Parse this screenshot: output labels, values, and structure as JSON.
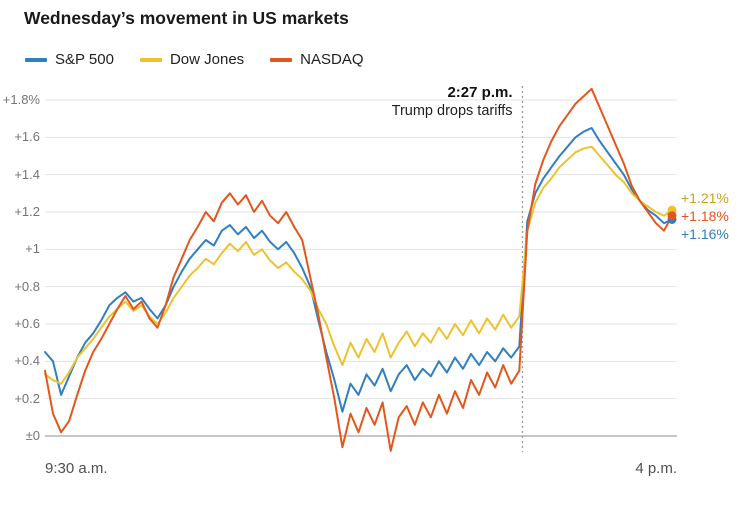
{
  "header": {
    "title": "Wednesday’s movement in US markets"
  },
  "chart_data": {
    "type": "line",
    "title": "Wednesday’s movement in US markets",
    "legend_position": "top-left",
    "grid": true,
    "x_axis": {
      "start_label": "9:30 a.m.",
      "end_label": "4 p.m.",
      "start_minute": 0,
      "end_minute": 390,
      "sample_interval_minutes": 5
    },
    "y_axis": {
      "unit": "percent change",
      "min": -0.1,
      "max": 1.9,
      "tick_values": [
        1.8,
        1.6,
        1.4,
        1.2,
        1.0,
        0.8,
        0.6,
        0.4,
        0.2,
        0
      ],
      "tick_labels": [
        "+1.8%",
        "+1.6",
        "+1.4",
        "+1.2",
        "+1",
        "+0.8",
        "+0.6",
        "+0.4",
        "+0.2",
        "±0"
      ]
    },
    "annotation": {
      "minute": 297,
      "time_label": "2:27 p.m.",
      "text": "Trump drops tariffs"
    },
    "series": [
      {
        "name": "S&P 500",
        "color": "#2f7fc1",
        "final_change_pct": 1.16,
        "values": [
          0.45,
          0.4,
          0.22,
          0.32,
          0.42,
          0.5,
          0.55,
          0.62,
          0.7,
          0.74,
          0.77,
          0.72,
          0.74,
          0.68,
          0.63,
          0.7,
          0.8,
          0.88,
          0.95,
          1.0,
          1.05,
          1.02,
          1.1,
          1.13,
          1.08,
          1.12,
          1.06,
          1.1,
          1.04,
          1.0,
          1.04,
          0.98,
          0.9,
          0.8,
          0.62,
          0.45,
          0.3,
          0.13,
          0.28,
          0.22,
          0.33,
          0.27,
          0.36,
          0.24,
          0.33,
          0.38,
          0.3,
          0.36,
          0.32,
          0.4,
          0.34,
          0.42,
          0.36,
          0.44,
          0.38,
          0.45,
          0.4,
          0.47,
          0.42,
          0.48,
          1.15,
          1.3,
          1.38,
          1.44,
          1.5,
          1.55,
          1.6,
          1.63,
          1.65,
          1.58,
          1.52,
          1.46,
          1.4,
          1.32,
          1.26,
          1.21,
          1.18,
          1.14,
          1.16
        ]
      },
      {
        "name": "Dow Jones",
        "color": "#ecc32f",
        "final_change_pct": 1.21,
        "values": [
          0.33,
          0.3,
          0.28,
          0.34,
          0.42,
          0.47,
          0.52,
          0.58,
          0.64,
          0.68,
          0.72,
          0.67,
          0.7,
          0.64,
          0.6,
          0.66,
          0.74,
          0.8,
          0.86,
          0.9,
          0.95,
          0.92,
          0.98,
          1.03,
          0.99,
          1.04,
          0.97,
          1.0,
          0.94,
          0.9,
          0.93,
          0.88,
          0.84,
          0.78,
          0.68,
          0.6,
          0.48,
          0.38,
          0.5,
          0.42,
          0.52,
          0.45,
          0.55,
          0.42,
          0.5,
          0.56,
          0.48,
          0.55,
          0.5,
          0.58,
          0.52,
          0.6,
          0.54,
          0.62,
          0.55,
          0.63,
          0.57,
          0.65,
          0.58,
          0.64,
          1.1,
          1.25,
          1.33,
          1.38,
          1.44,
          1.48,
          1.52,
          1.54,
          1.55,
          1.5,
          1.45,
          1.4,
          1.36,
          1.3,
          1.26,
          1.23,
          1.2,
          1.18,
          1.21
        ]
      },
      {
        "name": "NASDAQ",
        "color": "#e4571c",
        "final_change_pct": 1.18,
        "values": [
          0.35,
          0.12,
          0.02,
          0.08,
          0.22,
          0.35,
          0.45,
          0.52,
          0.6,
          0.68,
          0.75,
          0.68,
          0.72,
          0.63,
          0.58,
          0.7,
          0.85,
          0.95,
          1.05,
          1.12,
          1.2,
          1.15,
          1.25,
          1.3,
          1.24,
          1.29,
          1.2,
          1.26,
          1.18,
          1.14,
          1.2,
          1.12,
          1.05,
          0.85,
          0.65,
          0.42,
          0.2,
          -0.06,
          0.12,
          0.02,
          0.15,
          0.06,
          0.18,
          -0.08,
          0.1,
          0.16,
          0.06,
          0.18,
          0.1,
          0.22,
          0.12,
          0.24,
          0.15,
          0.3,
          0.22,
          0.34,
          0.26,
          0.38,
          0.28,
          0.35,
          1.1,
          1.35,
          1.48,
          1.58,
          1.66,
          1.72,
          1.78,
          1.82,
          1.86,
          1.76,
          1.66,
          1.56,
          1.46,
          1.34,
          1.26,
          1.2,
          1.14,
          1.1,
          1.18
        ]
      }
    ],
    "end_labels": [
      {
        "text": "+1.21%",
        "series": "Dow Jones",
        "value": 1.21,
        "color": "#cfa118"
      },
      {
        "text": "+1.18%",
        "series": "NASDAQ",
        "value": 1.18,
        "color": "#e4571c"
      },
      {
        "text": "+1.16%",
        "series": "S&P 500",
        "value": 1.16,
        "color": "#2f7fc1"
      }
    ]
  }
}
